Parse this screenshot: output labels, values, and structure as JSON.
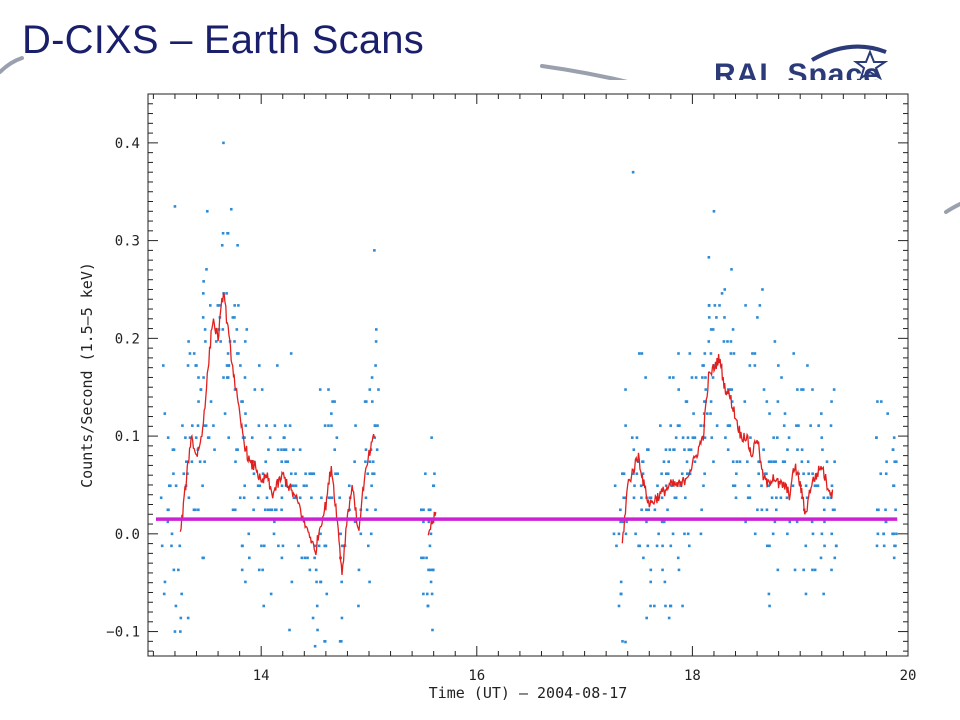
{
  "slide": {
    "title": "D-CIXS – Earth Scans",
    "logo_text": "RAL Space",
    "logo_icon": "star-swoosh-icon"
  },
  "chart_data": {
    "type": "scatter",
    "title": "",
    "xlabel": "Time (UT) – 2004-08-17",
    "ylabel": "Counts/Second (1.5–5 keV)",
    "xlim": [
      12.95,
      20.0
    ],
    "ylim": [
      -0.125,
      0.45
    ],
    "xticks": [
      14,
      16,
      18,
      20
    ],
    "yticks": [
      -0.1,
      0.0,
      0.1,
      0.2,
      0.3,
      0.4
    ],
    "ytick_labels": [
      "−0.1",
      "0.0",
      "0.1",
      "0.2",
      "0.3",
      "0.4"
    ],
    "colors": {
      "scatter": "#2e8bd6",
      "smoothed": "#e0201e",
      "baseline": "#cc22d6"
    },
    "baseline": {
      "y": 0.015,
      "x_start": 12.95,
      "x_end": 19.9
    },
    "segments": [
      {
        "points": [
          [
            13.25,
            0.0
          ],
          [
            13.3,
            0.05
          ],
          [
            13.35,
            0.1
          ],
          [
            13.4,
            0.08
          ],
          [
            13.45,
            0.1
          ],
          [
            13.5,
            0.16
          ],
          [
            13.55,
            0.22
          ],
          [
            13.6,
            0.2
          ],
          [
            13.65,
            0.25
          ],
          [
            13.7,
            0.2
          ],
          [
            13.75,
            0.16
          ],
          [
            13.8,
            0.12
          ],
          [
            13.85,
            0.09
          ],
          [
            13.9,
            0.07
          ],
          [
            13.95,
            0.07
          ],
          [
            14.0,
            0.05
          ],
          [
            14.05,
            0.06
          ],
          [
            14.1,
            0.04
          ],
          [
            14.15,
            0.05
          ],
          [
            14.2,
            0.06
          ],
          [
            14.25,
            0.05
          ],
          [
            14.3,
            0.04
          ],
          [
            14.35,
            0.03
          ],
          [
            14.4,
            0.01
          ],
          [
            14.45,
            0.0
          ],
          [
            14.5,
            -0.02
          ],
          [
            14.55,
            0.01
          ],
          [
            14.6,
            0.03
          ],
          [
            14.65,
            0.07
          ],
          [
            14.7,
            0.02
          ],
          [
            14.75,
            -0.04
          ],
          [
            14.8,
            0.02
          ],
          [
            14.85,
            0.05
          ],
          [
            14.9,
            0.0
          ],
          [
            14.95,
            0.05
          ],
          [
            15.0,
            0.08
          ],
          [
            15.05,
            0.1
          ]
        ]
      },
      {
        "points": [
          [
            15.55,
            0.0
          ],
          [
            15.58,
            0.01
          ],
          [
            15.62,
            0.02
          ]
        ]
      },
      {
        "points": [
          [
            17.35,
            -0.01
          ],
          [
            17.4,
            0.05
          ],
          [
            17.5,
            0.08
          ],
          [
            17.55,
            0.05
          ],
          [
            17.6,
            0.03
          ],
          [
            17.7,
            0.04
          ],
          [
            17.8,
            0.05
          ],
          [
            17.9,
            0.05
          ],
          [
            18.0,
            0.07
          ],
          [
            18.1,
            0.1
          ],
          [
            18.15,
            0.16
          ],
          [
            18.2,
            0.17
          ],
          [
            18.25,
            0.18
          ],
          [
            18.3,
            0.15
          ],
          [
            18.35,
            0.14
          ],
          [
            18.4,
            0.12
          ],
          [
            18.45,
            0.1
          ],
          [
            18.5,
            0.1
          ],
          [
            18.55,
            0.08
          ],
          [
            18.6,
            0.1
          ],
          [
            18.65,
            0.06
          ],
          [
            18.7,
            0.05
          ],
          [
            18.75,
            0.06
          ],
          [
            18.8,
            0.05
          ],
          [
            18.85,
            0.05
          ],
          [
            18.9,
            0.04
          ],
          [
            18.95,
            0.07
          ],
          [
            19.0,
            0.05
          ],
          [
            19.05,
            0.02
          ],
          [
            19.1,
            0.05
          ],
          [
            19.15,
            0.06
          ],
          [
            19.2,
            0.07
          ],
          [
            19.25,
            0.05
          ],
          [
            19.3,
            0.04
          ]
        ]
      }
    ],
    "scatter_groups": [
      {
        "x": [
          13.05,
          13.25
        ],
        "spread": 0.14,
        "count": 22
      },
      {
        "x": [
          13.25,
          14.0
        ],
        "spread": 0.14,
        "count": 120
      },
      {
        "x": [
          14.0,
          15.1
        ],
        "spread": 0.12,
        "count": 150
      },
      {
        "x": [
          15.48,
          15.62
        ],
        "spread": 0.09,
        "count": 28
      },
      {
        "x": [
          17.25,
          18.0
        ],
        "spread": 0.12,
        "count": 120
      },
      {
        "x": [
          18.0,
          19.35
        ],
        "spread": 0.12,
        "count": 190
      },
      {
        "x": [
          19.7,
          19.9
        ],
        "spread": 0.09,
        "count": 32
      }
    ],
    "outliers": [
      [
        13.2,
        0.335
      ],
      [
        13.65,
        0.4
      ],
      [
        17.45,
        0.37
      ],
      [
        18.2,
        0.33
      ],
      [
        13.5,
        0.33
      ],
      [
        15.05,
        0.29
      ],
      [
        13.2,
        -0.1
      ],
      [
        13.25,
        -0.1
      ],
      [
        14.5,
        -0.115
      ],
      [
        18.65,
        0.25
      ],
      [
        18.3,
        0.25
      ]
    ]
  }
}
